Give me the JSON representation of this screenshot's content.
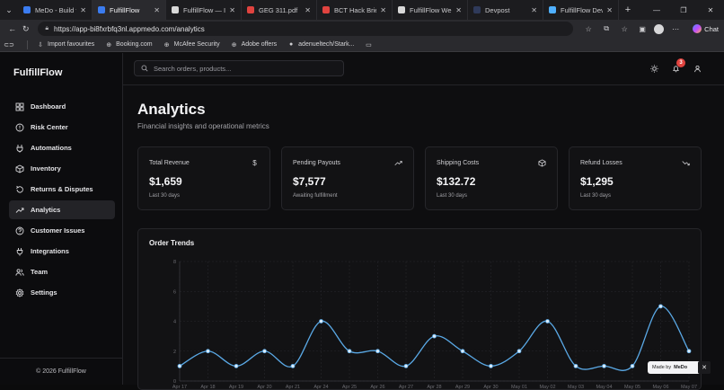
{
  "browser": {
    "tabs": [
      {
        "title": "MeDo - Build full-s",
        "color": "#3b7cf0",
        "active": false
      },
      {
        "title": "FulfillFlow",
        "color": "#3b7cf0",
        "active": true
      },
      {
        "title": "FulfillFlow — Inves",
        "color": "#d8d8d8",
        "active": false
      },
      {
        "title": "GEG 311.pdf",
        "color": "#e0433f",
        "active": false
      },
      {
        "title": "BCT Hack Brief.pdf",
        "color": "#e0433f",
        "active": false
      },
      {
        "title": "FulfillFlow Web Ap",
        "color": "#d8d8d8",
        "active": false
      },
      {
        "title": "Devpost",
        "color": "#2f3a5a",
        "active": false
      },
      {
        "title": "FulfillFlow Develop",
        "color": "#4fb0ff",
        "active": false
      }
    ],
    "url": "https://app-bi8fxrbfq3nl.appmedo.com/analytics",
    "chat_label": "Chat",
    "bookmarks": [
      {
        "label": "Import favourites",
        "icon": "import-icon"
      },
      {
        "label": "Booking.com",
        "icon": "globe-icon"
      },
      {
        "label": "McAfee Security",
        "icon": "globe-icon"
      },
      {
        "label": "Adobe offers",
        "icon": "globe-icon"
      },
      {
        "label": "adenueltech/Stark...",
        "icon": "github-icon"
      }
    ]
  },
  "app": {
    "brand": "FulfillFlow",
    "nav": [
      {
        "label": "Dashboard",
        "icon": "grid-icon",
        "active": false
      },
      {
        "label": "Risk Center",
        "icon": "alert-circle-icon",
        "active": false
      },
      {
        "label": "Automations",
        "icon": "zap-icon",
        "active": false
      },
      {
        "label": "Inventory",
        "icon": "box-icon",
        "active": false
      },
      {
        "label": "Returns & Disputes",
        "icon": "rotate-icon",
        "active": false
      },
      {
        "label": "Analytics",
        "icon": "trend-icon",
        "active": true
      },
      {
        "label": "Customer Issues",
        "icon": "help-circle-icon",
        "active": false
      },
      {
        "label": "Integrations",
        "icon": "plug-icon",
        "active": false
      },
      {
        "label": "Team",
        "icon": "users-icon",
        "active": false
      },
      {
        "label": "Settings",
        "icon": "gear-icon",
        "active": false
      }
    ],
    "footer": "© 2026 FulfillFlow",
    "search_placeholder": "Search orders, products...",
    "notification_count": "3",
    "page_title": "Analytics",
    "page_subtitle": "Financial insights and operational metrics",
    "cards": [
      {
        "label": "Total Revenue",
        "value": "$1,659",
        "note": "Last 30 days",
        "icon": "dollar-icon"
      },
      {
        "label": "Pending Payouts",
        "value": "$7,577",
        "note": "Awaiting fulfillment",
        "icon": "trend-up-icon"
      },
      {
        "label": "Shipping Costs",
        "value": "$132.72",
        "note": "Last 30 days",
        "icon": "package-icon"
      },
      {
        "label": "Refund Losses",
        "value": "$1,295",
        "note": "Last 30 days",
        "icon": "trend-down-icon"
      }
    ],
    "made_by_prefix": "Made by",
    "made_by_brand": "MeDo",
    "accent": "#5aa9e6"
  },
  "chart_data": {
    "type": "line",
    "title": "Order Trends",
    "categories": [
      "Apr 17",
      "Apr 18",
      "Apr 19",
      "Apr 20",
      "Apr 21",
      "Apr 24",
      "Apr 25",
      "Apr 26",
      "Apr 27",
      "Apr 28",
      "Apr 29",
      "Apr 30",
      "May 01",
      "May 02",
      "May 03",
      "May 04",
      "May 05",
      "May 06",
      "May 07"
    ],
    "values": [
      1,
      2,
      1,
      2,
      1,
      4,
      2,
      2,
      1,
      3,
      2,
      1,
      2,
      4,
      1,
      1,
      1,
      5,
      2
    ],
    "yticks": [
      0,
      2,
      4,
      6,
      8
    ],
    "ylim": [
      0,
      8
    ],
    "grid": true,
    "color": "#5aa9e6"
  }
}
